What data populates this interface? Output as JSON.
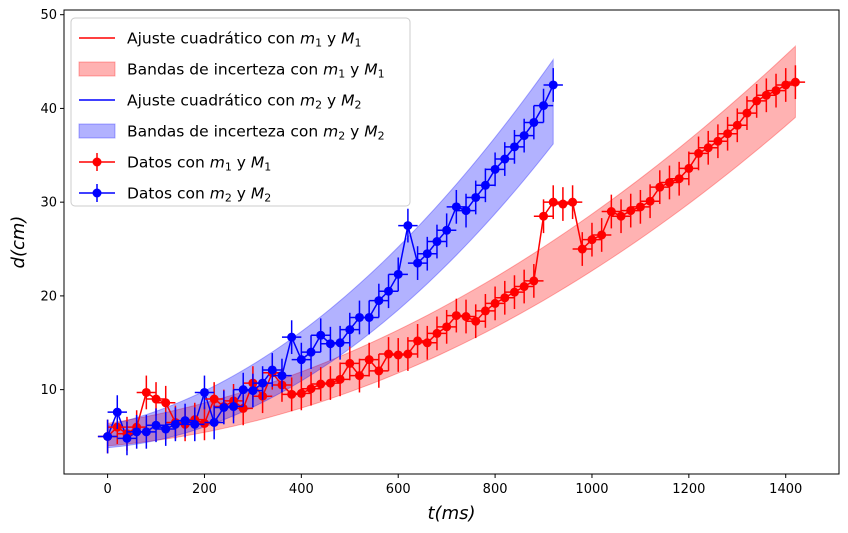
{
  "chart_data": {
    "type": "scatter",
    "title": "",
    "xlabel": "t(ms)",
    "ylabel": "d(cm)",
    "xlim": [
      -90,
      1510
    ],
    "ylim": [
      1,
      50.5
    ],
    "xticks": [
      0,
      200,
      400,
      600,
      800,
      1000,
      1200,
      1400
    ],
    "yticks": [
      10,
      20,
      30,
      40,
      50
    ],
    "grid": false,
    "legend_position": "top-left",
    "legend": [
      {
        "kind": "line",
        "color": "#ff0000",
        "label": "Ajuste cuadrático con m1 y M1",
        "prefix": "Ajuste cuadrático con ",
        "m": "1"
      },
      {
        "kind": "band",
        "color": "#ff0000",
        "label": "Bandas de incerteza con m1 y M1",
        "prefix": "Bandas de incerteza con ",
        "m": "1"
      },
      {
        "kind": "line",
        "color": "#0000ff",
        "label": "Ajuste cuadrático con m2 y M2",
        "prefix": "Ajuste cuadrático con ",
        "m": "2"
      },
      {
        "kind": "band",
        "color": "#0000ff",
        "label": "Bandas de incerteza con m2 y M2",
        "prefix": "Bandas de incerteza con ",
        "m": "2"
      },
      {
        "kind": "points",
        "color": "#ff0000",
        "label": "Datos con m1 y M1",
        "prefix": "Datos con ",
        "m": "1"
      },
      {
        "kind": "points",
        "color": "#0000ff",
        "label": "Datos con m2 y M2",
        "prefix": "Datos con ",
        "m": "2"
      }
    ],
    "series": [
      {
        "color": "#ff0000",
        "x_error": 20,
        "y_error": 1.8,
        "fit_band_half_width": [
          1.2,
          3.8
        ],
        "x": [
          0,
          20,
          40,
          60,
          80,
          100,
          120,
          140,
          160,
          180,
          200,
          220,
          240,
          260,
          280,
          300,
          320,
          340,
          360,
          380,
          400,
          420,
          440,
          460,
          480,
          500,
          520,
          540,
          560,
          580,
          600,
          620,
          640,
          660,
          680,
          700,
          720,
          740,
          760,
          780,
          800,
          820,
          840,
          860,
          880,
          900,
          920,
          940,
          960,
          980,
          1000,
          1020,
          1040,
          1060,
          1080,
          1100,
          1120,
          1140,
          1160,
          1180,
          1200,
          1220,
          1240,
          1260,
          1280,
          1300,
          1320,
          1340,
          1360,
          1380,
          1400,
          1420
        ],
        "y": [
          5.0,
          6.0,
          5.3,
          6.0,
          9.7,
          9.0,
          8.6,
          6.5,
          6.3,
          6.8,
          6.4,
          9.0,
          8.2,
          8.8,
          8.0,
          10.7,
          9.3,
          11.8,
          10.5,
          9.5,
          9.6,
          10.1,
          10.6,
          10.7,
          11.1,
          12.8,
          11.5,
          13.2,
          12.0,
          13.8,
          13.7,
          13.8,
          15.2,
          15.0,
          16.0,
          16.7,
          17.9,
          17.8,
          17.3,
          18.4,
          19.2,
          19.8,
          20.4,
          21.0,
          21.6,
          28.5,
          30.0,
          29.8,
          30.0,
          25.0,
          26.0,
          26.5,
          29.0,
          28.5,
          29.1,
          29.5,
          30.1,
          31.6,
          32.1,
          32.5,
          33.6,
          35.2,
          35.8,
          36.5,
          37.3,
          38.2,
          39.5,
          40.8,
          41.4,
          41.9,
          42.5,
          42.8
        ],
        "fit_coefficients": [
          5.2,
          0.0062,
          1.43e-05
        ]
      },
      {
        "color": "#0000ff",
        "x_error": 20,
        "y_error": 1.8,
        "fit_band_half_width": [
          1.2,
          4.5
        ],
        "x": [
          0,
          20,
          40,
          60,
          80,
          100,
          120,
          140,
          160,
          180,
          200,
          220,
          240,
          260,
          280,
          300,
          320,
          340,
          360,
          380,
          400,
          420,
          440,
          460,
          480,
          500,
          520,
          540,
          560,
          580,
          600,
          620,
          640,
          660,
          680,
          700,
          720,
          740,
          760,
          780,
          800,
          820,
          840,
          860,
          880,
          900,
          920
        ],
        "y": [
          5.0,
          7.6,
          4.8,
          5.5,
          5.5,
          6.2,
          5.8,
          6.3,
          6.7,
          6.3,
          9.7,
          6.5,
          8.1,
          8.2,
          10.0,
          9.9,
          10.7,
          12.1,
          11.5,
          15.6,
          13.2,
          14.0,
          15.8,
          14.9,
          15.0,
          16.4,
          17.7,
          17.7,
          19.5,
          20.5,
          22.3,
          27.5,
          23.5,
          24.5,
          25.8,
          27.0,
          29.5,
          29.1,
          30.5,
          31.8,
          33.5,
          34.6,
          35.9,
          37.1,
          38.5,
          40.3,
          42.5
        ],
        "fit_coefficients": [
          5.0,
          0.008,
          3.35e-05
        ]
      }
    ]
  }
}
